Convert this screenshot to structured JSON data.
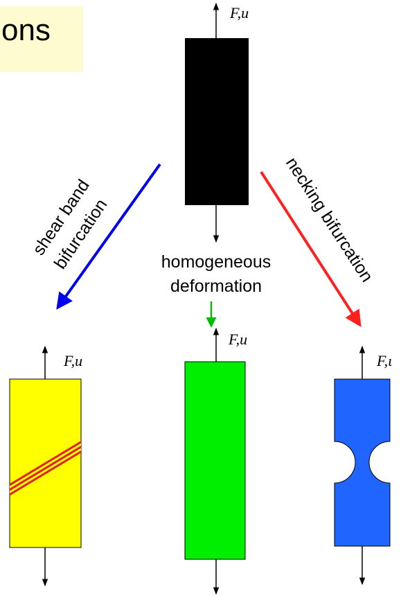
{
  "title": "ons",
  "colors": {
    "top_specimen": "#000000",
    "shear_specimen": "#ffff00",
    "shear_band": "#e02020",
    "homogeneous_specimen": "#00ee00",
    "necking_specimen": "#2065ff",
    "shear_arrow": "#0000ee",
    "homogeneous_arrow": "#00bb00",
    "necking_arrow": "#ff2020",
    "title_background": "#fefbd0"
  },
  "labels": {
    "load_top": "F,u",
    "load_shear": "F,u",
    "load_homogeneous": "F,u",
    "load_necking": "F,ι",
    "shear_line1": "shear band",
    "shear_line2": "bifurcation",
    "homogeneous_line1": "homogeneous",
    "homogeneous_line2": "deformation",
    "necking": "necking bifurcation"
  }
}
